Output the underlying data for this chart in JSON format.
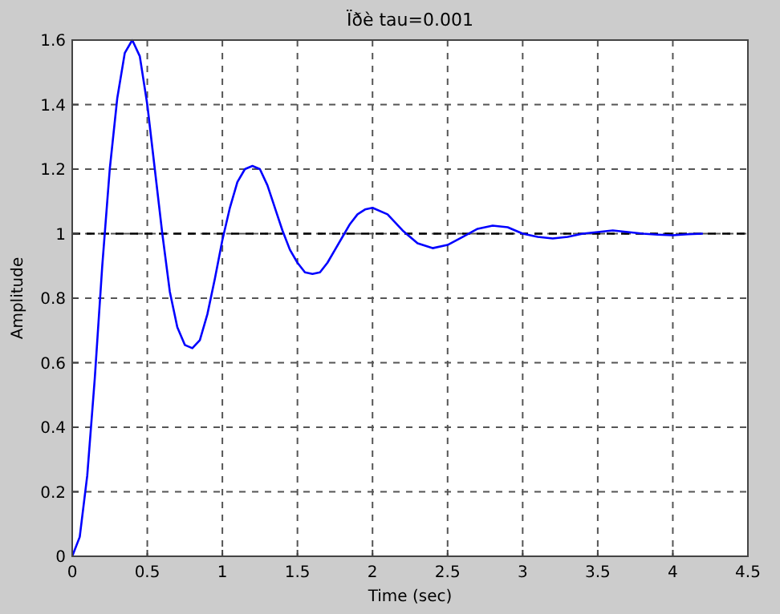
{
  "chart_data": {
    "type": "line",
    "title": "Ïðè tau=0.001",
    "xlabel": "Time (sec)",
    "ylabel": "Amplitude",
    "x": [
      0,
      0.05,
      0.1,
      0.15,
      0.2,
      0.25,
      0.3,
      0.35,
      0.4,
      0.45,
      0.5,
      0.55,
      0.6,
      0.65,
      0.7,
      0.75,
      0.8,
      0.85,
      0.9,
      0.95,
      1.0,
      1.05,
      1.1,
      1.15,
      1.2,
      1.25,
      1.3,
      1.35,
      1.4,
      1.45,
      1.5,
      1.55,
      1.6,
      1.65,
      1.7,
      1.75,
      1.8,
      1.85,
      1.9,
      1.95,
      2.0,
      2.1,
      2.2,
      2.3,
      2.4,
      2.5,
      2.6,
      2.7,
      2.8,
      2.9,
      3.0,
      3.1,
      3.2,
      3.3,
      3.4,
      3.5,
      3.6,
      3.7,
      3.8,
      3.9,
      4.0,
      4.1,
      4.2
    ],
    "series": [
      {
        "color": "#0000ff",
        "values": [
          0,
          0.06,
          0.25,
          0.55,
          0.9,
          1.2,
          1.42,
          1.56,
          1.6,
          1.55,
          1.4,
          1.2,
          1.0,
          0.82,
          0.71,
          0.655,
          0.645,
          0.67,
          0.75,
          0.86,
          0.98,
          1.08,
          1.16,
          1.2,
          1.21,
          1.2,
          1.15,
          1.08,
          1.01,
          0.95,
          0.91,
          0.88,
          0.875,
          0.88,
          0.91,
          0.95,
          0.99,
          1.03,
          1.06,
          1.075,
          1.08,
          1.06,
          1.01,
          0.97,
          0.955,
          0.965,
          0.99,
          1.015,
          1.025,
          1.02,
          1.0,
          0.99,
          0.985,
          0.99,
          1.0,
          1.005,
          1.01,
          1.005,
          1.0,
          0.997,
          0.995,
          0.998,
          1.0
        ]
      }
    ],
    "xlim": [
      0,
      4.5
    ],
    "xticks": [
      0,
      0.5,
      1,
      1.5,
      2,
      2.5,
      3,
      3.5,
      4,
      4.5
    ],
    "ylim": [
      0,
      1.6
    ],
    "yticks": [
      0,
      0.2,
      0.4,
      0.6,
      0.8,
      1,
      1.2,
      1.4,
      1.6
    ],
    "grid": true,
    "ref_lines": [
      {
        "axis": "y",
        "value": 1,
        "color": "#000000",
        "line_style": "dashed"
      }
    ]
  }
}
